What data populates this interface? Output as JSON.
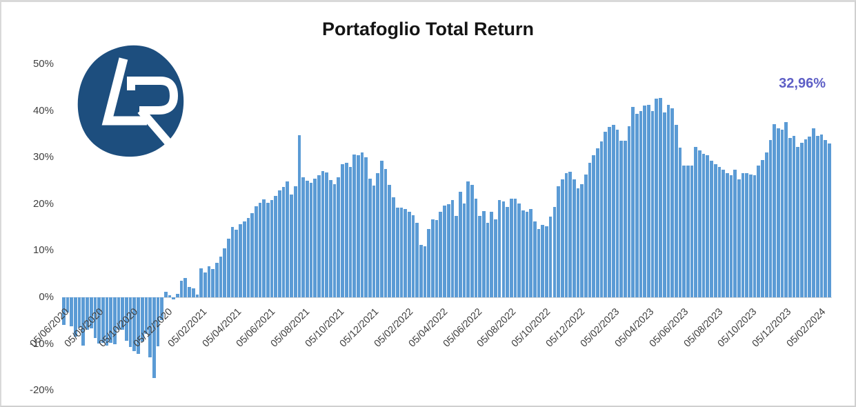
{
  "title": "Portafoglio Total Return",
  "annotation": {
    "label": "32,96%",
    "color": "#5E5FC6"
  },
  "logo": {
    "letters": "LR",
    "bg_color": "#1D4E7E",
    "letter_color": "#ffffff"
  },
  "chart_data": {
    "type": "bar",
    "title": "Portafoglio Total Return",
    "frequency": "weekly",
    "bar_color": "#5B9BD5",
    "background": "#ffffff",
    "grid": "off",
    "ylim": [
      -20,
      50
    ],
    "final_value_label": "32,96%",
    "y_ticks": [
      {
        "label": "50%",
        "value": 50
      },
      {
        "label": "40%",
        "value": 40
      },
      {
        "label": "30%",
        "value": 30
      },
      {
        "label": "20%",
        "value": 20
      },
      {
        "label": "10%",
        "value": 10
      },
      {
        "label": "0%",
        "value": 0
      },
      {
        "label": "-10%",
        "value": -10
      },
      {
        "label": "-20%",
        "value": -20
      }
    ],
    "x_ticks": [
      "05/06/2020",
      "05/08/2020",
      "05/10/2020",
      "05/12/2020",
      "05/02/2021",
      "05/04/2021",
      "05/06/2021",
      "05/08/2021",
      "05/10/2021",
      "05/12/2021",
      "05/02/2022",
      "05/04/2022",
      "05/06/2022",
      "05/08/2022",
      "05/10/2022",
      "05/12/2022",
      "05/02/2023",
      "05/04/2023",
      "05/06/2023",
      "05/08/2023",
      "05/10/2023",
      "05/12/2023",
      "05/02/2024"
    ],
    "bars_per_tick": 8.71,
    "values": [
      -5.9,
      -3.3,
      -6.2,
      -8.5,
      -6.5,
      -10.3,
      -6.9,
      -6.6,
      -8.8,
      -9.9,
      -9.7,
      -10.4,
      -9.7,
      -10.1,
      -6.9,
      -7.0,
      -9.3,
      -10.6,
      -11.6,
      -12.1,
      -9.4,
      -7.9,
      -12.8,
      -17.3,
      -10.5,
      -4.9,
      1.2,
      0.5,
      -0.4,
      0.8,
      3.5,
      4.1,
      2.2,
      1.9,
      0.6,
      6.2,
      5.3,
      6.6,
      6.0,
      7.4,
      8.8,
      10.5,
      12.6,
      15.1,
      14.5,
      15.7,
      16.3,
      17.0,
      18.0,
      19.5,
      20.3,
      21.0,
      20.3,
      20.8,
      21.8,
      23.0,
      23.6,
      24.8,
      22.1,
      23.8,
      34.8,
      25.7,
      25.0,
      24.6,
      25.5,
      26.2,
      27.0,
      26.8,
      25.2,
      24.3,
      25.7,
      28.5,
      28.9,
      28.0,
      30.6,
      30.5,
      31.0,
      30.1,
      25.5,
      23.9,
      26.6,
      29.3,
      27.5,
      24.1,
      21.5,
      19.3,
      19.3,
      18.9,
      18.3,
      17.6,
      16.0,
      11.3,
      11.0,
      14.6,
      16.7,
      16.6,
      18.4,
      19.7,
      20.0,
      20.8,
      17.5,
      22.6,
      20.1,
      24.8,
      24.1,
      21.1,
      17.4,
      18.5,
      16.0,
      18.4,
      16.7,
      20.9,
      20.6,
      19.4,
      21.1,
      21.1,
      20.1,
      18.7,
      18.3,
      18.9,
      16.2,
      14.7,
      15.5,
      15.2,
      17.3,
      19.4,
      23.8,
      25.3,
      26.7,
      26.9,
      25.3,
      23.4,
      24.3,
      26.3,
      28.8,
      30.5,
      32.0,
      33.5,
      35.5,
      36.5,
      37.0,
      36.0,
      33.6,
      33.6,
      36.7,
      40.8,
      39.4,
      40.0,
      41.1,
      41.3,
      40.0,
      42.6,
      42.8,
      39.6,
      41.3,
      40.6,
      37.0,
      32.1,
      28.3,
      28.3,
      28.3,
      32.2,
      31.5,
      30.8,
      30.4,
      29.3,
      28.5,
      28.0,
      27.4,
      26.6,
      26.2,
      27.4,
      25.3,
      26.7,
      26.6,
      26.4,
      26.2,
      28.2,
      29.5,
      31.1,
      33.8,
      37.2,
      36.3,
      35.9,
      37.6,
      34.2,
      34.6,
      32.3,
      33.1,
      33.9,
      34.4,
      36.2,
      34.6,
      34.9,
      33.7,
      32.96
    ]
  }
}
